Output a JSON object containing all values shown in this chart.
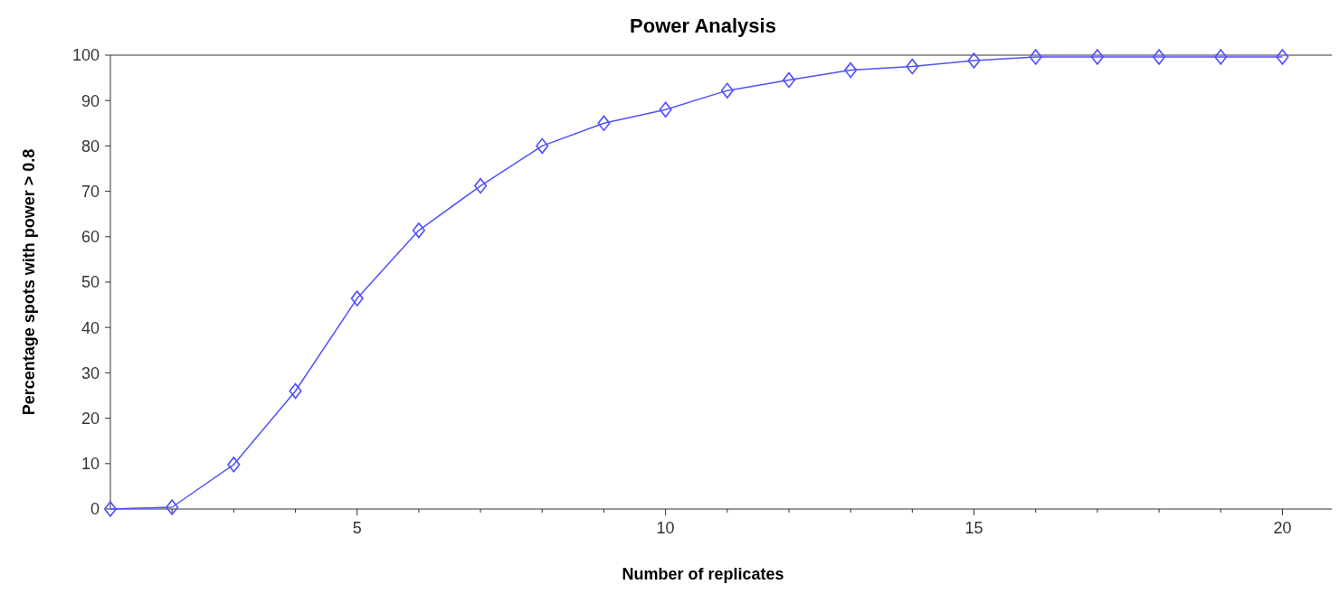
{
  "chart_data": {
    "type": "line",
    "title": "Power Analysis",
    "xlabel": "Number of replicates",
    "ylabel": "Percentage spots with power > 0.8",
    "x": [
      1,
      2,
      3,
      4,
      5,
      6,
      7,
      8,
      9,
      10,
      11,
      12,
      13,
      14,
      15,
      16,
      17,
      18,
      19,
      20
    ],
    "series": [
      {
        "color": "#5050ff",
        "values": [
          0,
          0.4,
          9.8,
          26,
          46.4,
          61.4,
          71.2,
          80,
          85,
          88,
          92.2,
          94.5,
          96.7,
          97.5,
          98.8,
          99.6,
          99.6,
          99.6,
          99.6,
          99.6
        ]
      }
    ],
    "xlim": [
      1,
      20.8
    ],
    "xticks": [
      {
        "value": 2,
        "label": null
      },
      {
        "value": 3,
        "label": null
      },
      {
        "value": 4,
        "label": null
      },
      5,
      {
        "value": 6,
        "label": null
      },
      {
        "value": 7,
        "label": null
      },
      {
        "value": 8,
        "label": null
      },
      {
        "value": 9,
        "label": null
      },
      10,
      {
        "value": 11,
        "label": null
      },
      {
        "value": 12,
        "label": null
      },
      {
        "value": 13,
        "label": null
      },
      {
        "value": 14,
        "label": null
      },
      15,
      {
        "value": 16,
        "label": null
      },
      {
        "value": 17,
        "label": null
      },
      {
        "value": 18,
        "label": null
      },
      {
        "value": 19,
        "label": null
      },
      20
    ],
    "ylim": [
      0,
      100
    ],
    "yticks": [
      0,
      10,
      20,
      30,
      40,
      50,
      60,
      70,
      80,
      90,
      100
    ],
    "grid": false,
    "marker": "diamond",
    "line_style": "solid"
  }
}
